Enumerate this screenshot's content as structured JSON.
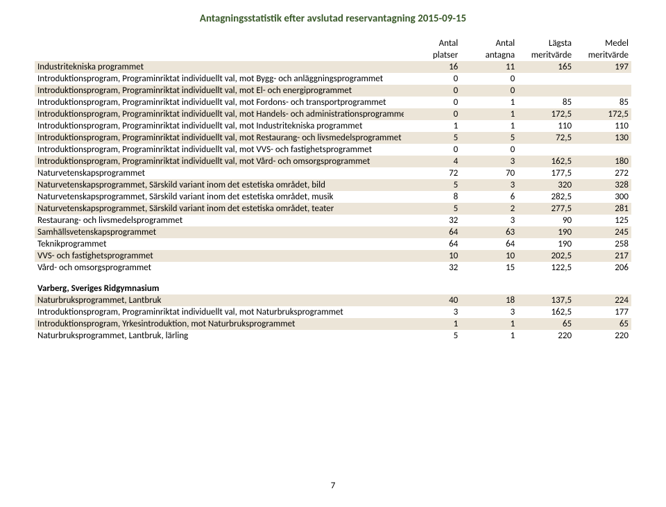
{
  "page_title": "Antagningsstatistik efter avslutad reservantagning 2015-09-15",
  "headers": {
    "h1a": "Antal",
    "h1b": "platser",
    "h2a": "Antal",
    "h2b": "antagna",
    "h3a": "Lägsta",
    "h3b": "meritvärde",
    "h4a": "Medel",
    "h4b": "meritvärde"
  },
  "rows1": [
    {
      "name": "Industritekniska programmet",
      "c1": "16",
      "c2": "11",
      "c3": "165",
      "c4": "197"
    },
    {
      "name": "Introduktionsprogram, Programinriktat individuellt val, mot Bygg- och anläggningsprogrammet",
      "c1": "0",
      "c2": "0",
      "c3": "",
      "c4": ""
    },
    {
      "name": "Introduktionsprogram, Programinriktat individuellt val, mot El- och energiprogrammet",
      "c1": "0",
      "c2": "0",
      "c3": "",
      "c4": ""
    },
    {
      "name": "Introduktionsprogram, Programinriktat individuellt val, mot Fordons- och transportprogrammet",
      "c1": "0",
      "c2": "1",
      "c3": "85",
      "c4": "85"
    },
    {
      "name": "Introduktionsprogram, Programinriktat individuellt val, mot Handels- och administrationsprogrammet",
      "c1": "0",
      "c2": "1",
      "c3": "172,5",
      "c4": "172,5"
    },
    {
      "name": "Introduktionsprogram, Programinriktat individuellt val, mot Industritekniska programmet",
      "c1": "1",
      "c2": "1",
      "c3": "110",
      "c4": "110"
    },
    {
      "name": "Introduktionsprogram, Programinriktat individuellt val, mot Restaurang- och livsmedelsprogrammet",
      "c1": "5",
      "c2": "5",
      "c3": "72,5",
      "c4": "130"
    },
    {
      "name": "Introduktionsprogram, Programinriktat individuellt val, mot VVS- och fastighetsprogrammet",
      "c1": "0",
      "c2": "0",
      "c3": "",
      "c4": ""
    },
    {
      "name": "Introduktionsprogram, Programinriktat individuellt val, mot Vård- och omsorgsprogrammet",
      "c1": "4",
      "c2": "3",
      "c3": "162,5",
      "c4": "180"
    },
    {
      "name": "Naturvetenskapsprogrammet",
      "c1": "72",
      "c2": "70",
      "c3": "177,5",
      "c4": "272"
    },
    {
      "name": "Naturvetenskapsprogrammet, Särskild variant inom det estetiska området, bild",
      "c1": "5",
      "c2": "3",
      "c3": "320",
      "c4": "328"
    },
    {
      "name": "Naturvetenskapsprogrammet, Särskild variant inom det estetiska området, musik",
      "c1": "8",
      "c2": "6",
      "c3": "282,5",
      "c4": "300"
    },
    {
      "name": "Naturvetenskapsprogrammet, Särskild variant inom det estetiska området, teater",
      "c1": "5",
      "c2": "2",
      "c3": "277,5",
      "c4": "281"
    },
    {
      "name": "Restaurang- och livsmedelsprogrammet",
      "c1": "32",
      "c2": "3",
      "c3": "90",
      "c4": "125"
    },
    {
      "name": "Samhällsvetenskapsprogrammet",
      "c1": "64",
      "c2": "63",
      "c3": "190",
      "c4": "245"
    },
    {
      "name": "Teknikprogrammet",
      "c1": "64",
      "c2": "64",
      "c3": "190",
      "c4": "258"
    },
    {
      "name": "VVS- och fastighetsprogrammet",
      "c1": "10",
      "c2": "10",
      "c3": "202,5",
      "c4": "217"
    },
    {
      "name": "Vård- och omsorgsprogrammet",
      "c1": "32",
      "c2": "15",
      "c3": "122,5",
      "c4": "206"
    }
  ],
  "section2_title": "Varberg, Sveriges Ridgymnasium",
  "rows2": [
    {
      "name": "Naturbruksprogrammet, Lantbruk",
      "c1": "40",
      "c2": "18",
      "c3": "137,5",
      "c4": "224"
    },
    {
      "name": "Introduktionsprogram, Programinriktat individuellt val, mot Naturbruksprogrammet",
      "c1": "3",
      "c2": "3",
      "c3": "162,5",
      "c4": "177"
    },
    {
      "name": "Introduktionsprogram, Yrkesintroduktion, mot Naturbruksprogrammet",
      "c1": "1",
      "c2": "1",
      "c3": "65",
      "c4": "65"
    },
    {
      "name": "Naturbruksprogrammet, Lantbruk, lärling",
      "c1": "5",
      "c2": "1",
      "c3": "220",
      "c4": "220"
    }
  ],
  "page_number": "7",
  "colors": {
    "stripe": "#ece5d8",
    "title": "#3a5a2a"
  }
}
